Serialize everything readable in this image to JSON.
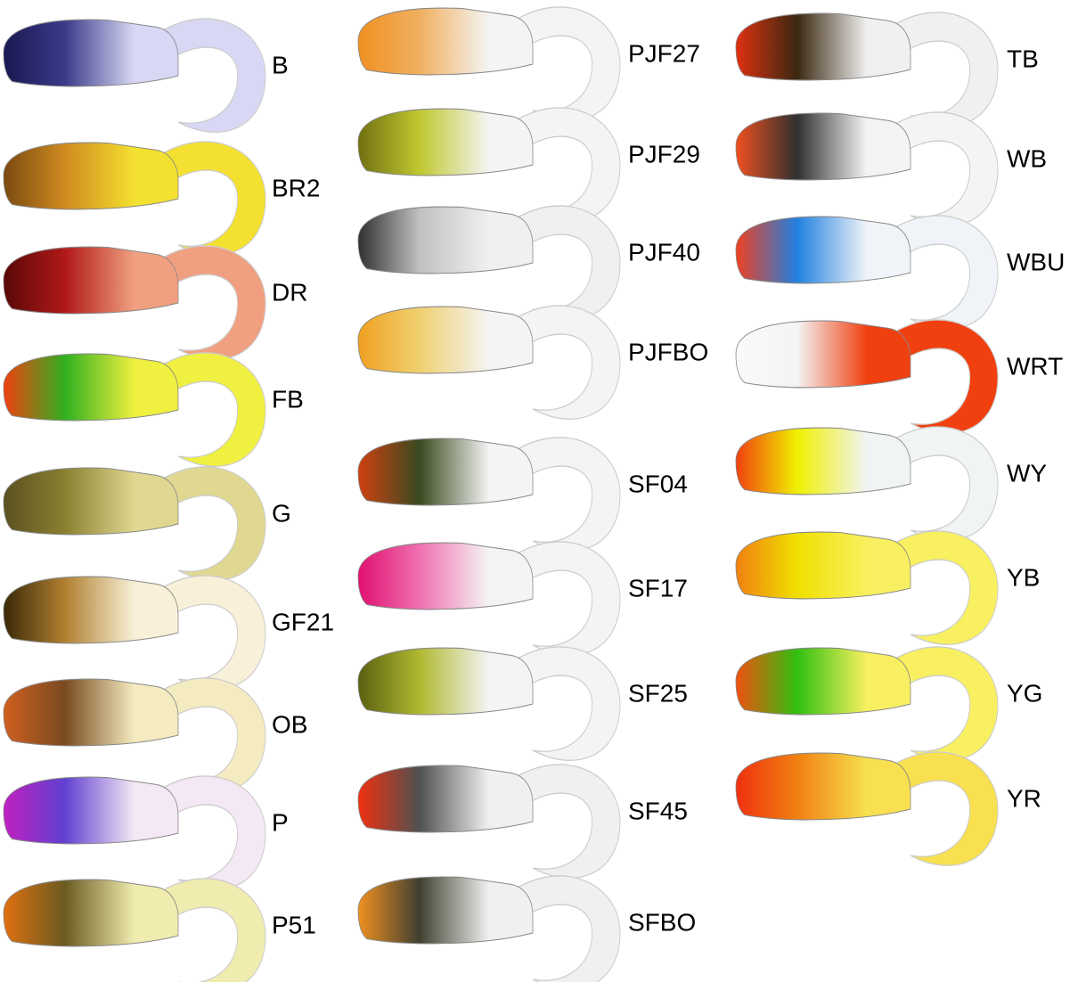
{
  "columns": [
    [
      "B",
      "BR2",
      "DR",
      "FB",
      "G",
      "GF21",
      "OB",
      "P",
      "P51"
    ],
    [
      "PJF27",
      "PJF29",
      "PJF40",
      "PJFBO",
      "SF04",
      "SF17",
      "SF25",
      "SF45",
      "SFBO"
    ],
    [
      "TB",
      "WB",
      "WBU",
      "WRT",
      "WY",
      "YB",
      "YG",
      "YR"
    ]
  ]
}
